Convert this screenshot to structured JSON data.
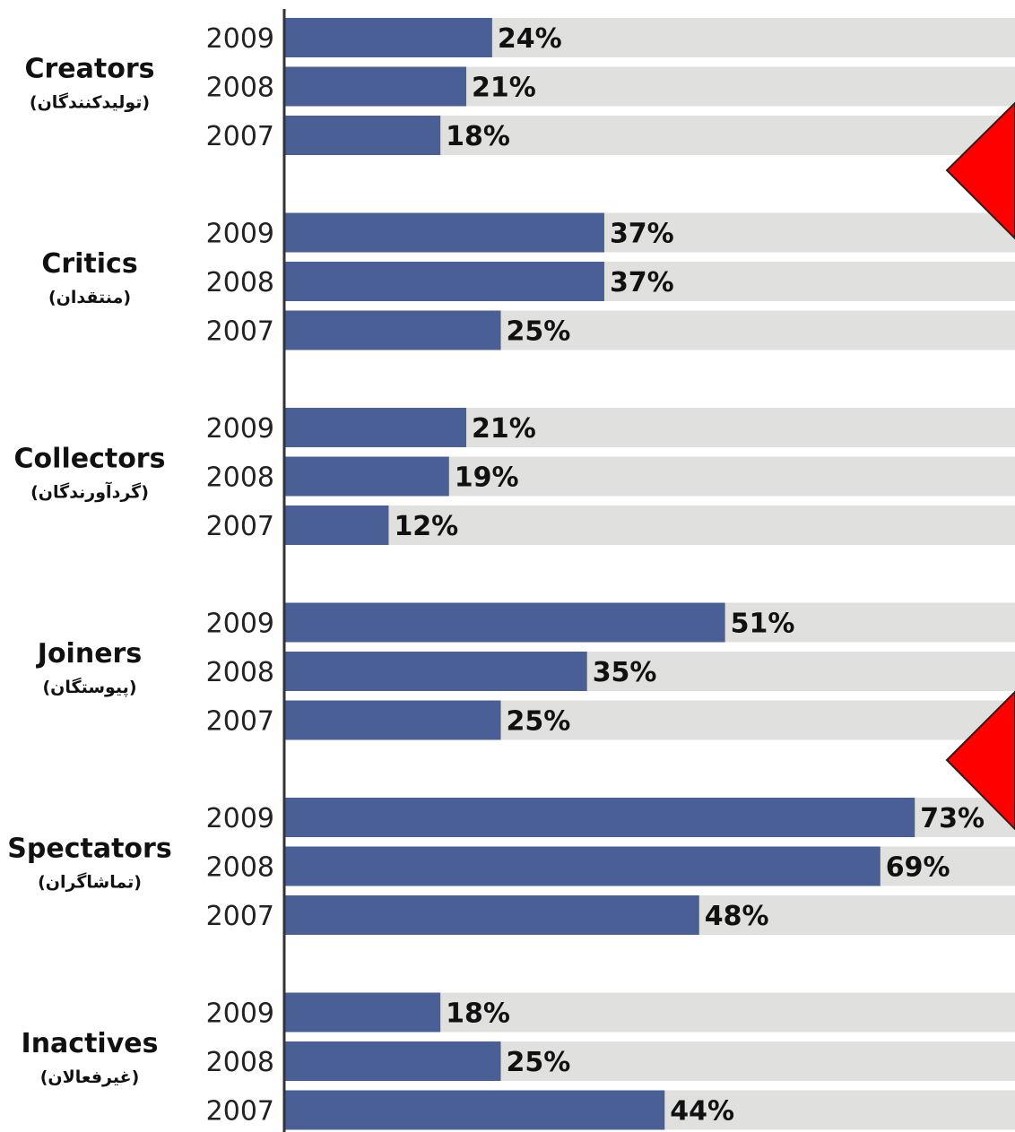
{
  "chart_data": {
    "type": "bar",
    "orientation": "horizontal",
    "xlim": [
      0,
      100
    ],
    "grid": false,
    "legend": "none",
    "colors": {
      "bar": "#4A5F95",
      "track": "#E0E0DE",
      "axis": "#333333",
      "marker": "#FF0000"
    },
    "value_suffix": "%",
    "groups": [
      {
        "name": "Creators",
        "name_fa": "(تولیدکنندگان)",
        "years": [
          "2009",
          "2008",
          "2007"
        ],
        "values": [
          24,
          21,
          18
        ]
      },
      {
        "name": "Critics",
        "name_fa": "(منتقدان)",
        "years": [
          "2009",
          "2008",
          "2007"
        ],
        "values": [
          37,
          37,
          25
        ]
      },
      {
        "name": "Collectors",
        "name_fa": "(گردآورندگان)",
        "years": [
          "2009",
          "2008",
          "2007"
        ],
        "values": [
          21,
          19,
          12
        ]
      },
      {
        "name": "Joiners",
        "name_fa": "(پیوستگان)",
        "years": [
          "2009",
          "2008",
          "2007"
        ],
        "values": [
          51,
          35,
          25
        ]
      },
      {
        "name": "Spectators",
        "name_fa": "(تماشاگران)",
        "years": [
          "2009",
          "2008",
          "2007"
        ],
        "values": [
          73,
          69,
          48
        ]
      },
      {
        "name": "Inactives",
        "name_fa": "(غیرفعالان)",
        "years": [
          "2009",
          "2008",
          "2007"
        ],
        "values": [
          18,
          25,
          44
        ]
      }
    ],
    "annotations": [
      {
        "shape": "triangle-left"
      },
      {
        "shape": "triangle-left"
      }
    ]
  }
}
